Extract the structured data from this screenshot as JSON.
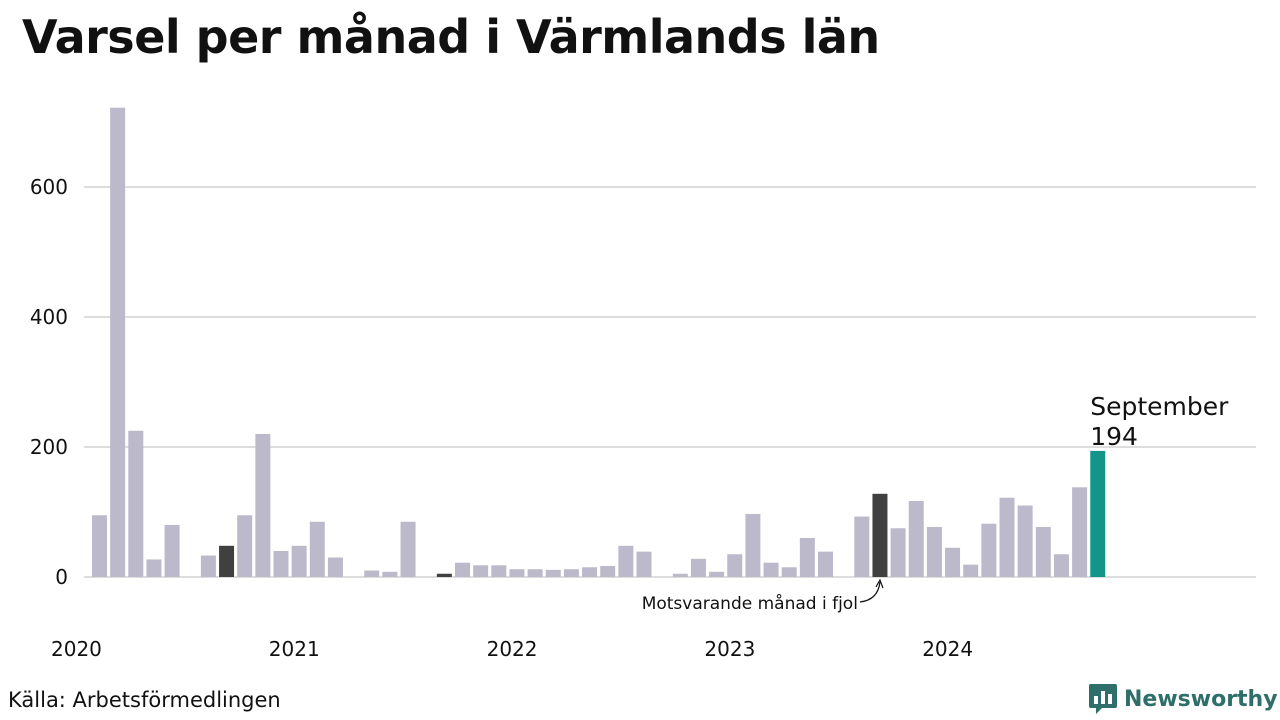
{
  "chart_data": {
    "type": "bar",
    "title": "Varsel per månad i Värmlands län",
    "xlabel": "",
    "ylabel": "",
    "ylim": [
      0,
      740
    ],
    "yticks": [
      0,
      200,
      400,
      600
    ],
    "grid": true,
    "year_labels": [
      {
        "label": "2020",
        "start_index": 0
      },
      {
        "label": "2021",
        "start_index": 12
      },
      {
        "label": "2022",
        "start_index": 24
      },
      {
        "label": "2023",
        "start_index": 36
      },
      {
        "label": "2024",
        "start_index": 48
      }
    ],
    "months_total": 60,
    "values": [
      95,
      722,
      225,
      27,
      80,
      0,
      33,
      48,
      95,
      220,
      40,
      48,
      85,
      30,
      0,
      10,
      8,
      85,
      0,
      5,
      22,
      18,
      18,
      12,
      12,
      11,
      12,
      15,
      17,
      48,
      39,
      0,
      5,
      28,
      8,
      35,
      97,
      22,
      15,
      60,
      39,
      0,
      93,
      128,
      75,
      117,
      77,
      45,
      19,
      82,
      122,
      110,
      77,
      35,
      138,
      194
    ],
    "highlight_indices": [
      7,
      19,
      43
    ],
    "current_index": 55,
    "colors": {
      "default": "#bcbaca",
      "previous_year": "#404040",
      "current": "#14958a",
      "grid": "#dddddd"
    },
    "annotation_previous": {
      "text": "Motsvarande månad i fjol",
      "index": 43
    },
    "annotation_current": {
      "month": "September",
      "value": "194",
      "index": 55
    }
  },
  "footer": {
    "source": "Källa: Arbetsförmedlingen",
    "brand": "Newsworthy",
    "logo_icon": "bar-chart-logo-icon"
  }
}
